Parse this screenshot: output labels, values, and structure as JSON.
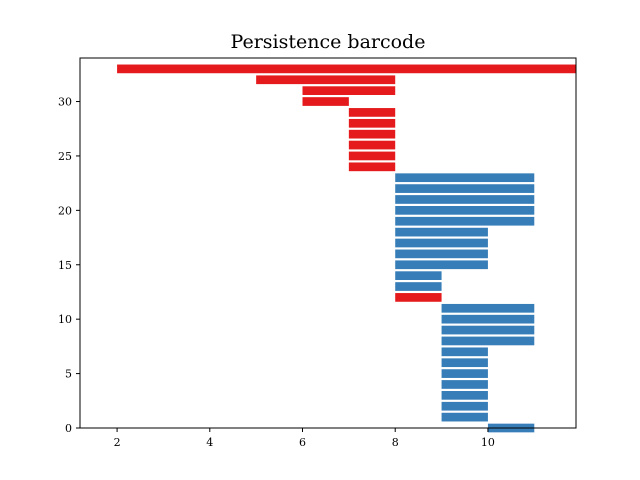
{
  "chart_data": {
    "type": "bar",
    "orientation": "horizontal",
    "title": "Persistence barcode",
    "xlabel": "",
    "ylabel": "",
    "xlim": [
      1.2,
      11.9
    ],
    "ylim": [
      0,
      34
    ],
    "xticks": [
      2,
      4,
      6,
      8,
      10
    ],
    "yticks": [
      0,
      5,
      10,
      15,
      20,
      25,
      30
    ],
    "grid": false,
    "legend": "none",
    "colors": {
      "dim0": "#e41a1c",
      "dim1": "#377eb8"
    },
    "bars": [
      {
        "y": 0,
        "start": 10,
        "end": 11,
        "dim": 1
      },
      {
        "y": 1,
        "start": 9,
        "end": 10,
        "dim": 1
      },
      {
        "y": 2,
        "start": 9,
        "end": 10,
        "dim": 1
      },
      {
        "y": 3,
        "start": 9,
        "end": 10,
        "dim": 1
      },
      {
        "y": 4,
        "start": 9,
        "end": 10,
        "dim": 1
      },
      {
        "y": 5,
        "start": 9,
        "end": 10,
        "dim": 1
      },
      {
        "y": 6,
        "start": 9,
        "end": 10,
        "dim": 1
      },
      {
        "y": 7,
        "start": 9,
        "end": 10,
        "dim": 1
      },
      {
        "y": 8,
        "start": 9,
        "end": 11,
        "dim": 1
      },
      {
        "y": 9,
        "start": 9,
        "end": 11,
        "dim": 1
      },
      {
        "y": 10,
        "start": 9,
        "end": 11,
        "dim": 1
      },
      {
        "y": 11,
        "start": 9,
        "end": 11,
        "dim": 1
      },
      {
        "y": 12,
        "start": 8,
        "end": 9,
        "dim": 0
      },
      {
        "y": 13,
        "start": 8,
        "end": 9,
        "dim": 1
      },
      {
        "y": 14,
        "start": 8,
        "end": 9,
        "dim": 1
      },
      {
        "y": 15,
        "start": 8,
        "end": 10,
        "dim": 1
      },
      {
        "y": 16,
        "start": 8,
        "end": 10,
        "dim": 1
      },
      {
        "y": 17,
        "start": 8,
        "end": 10,
        "dim": 1
      },
      {
        "y": 18,
        "start": 8,
        "end": 10,
        "dim": 1
      },
      {
        "y": 19,
        "start": 8,
        "end": 11,
        "dim": 1
      },
      {
        "y": 20,
        "start": 8,
        "end": 11,
        "dim": 1
      },
      {
        "y": 21,
        "start": 8,
        "end": 11,
        "dim": 1
      },
      {
        "y": 22,
        "start": 8,
        "end": 11,
        "dim": 1
      },
      {
        "y": 23,
        "start": 8,
        "end": 11,
        "dim": 1
      },
      {
        "y": 24,
        "start": 7,
        "end": 8,
        "dim": 0
      },
      {
        "y": 25,
        "start": 7,
        "end": 8,
        "dim": 0
      },
      {
        "y": 26,
        "start": 7,
        "end": 8,
        "dim": 0
      },
      {
        "y": 27,
        "start": 7,
        "end": 8,
        "dim": 0
      },
      {
        "y": 28,
        "start": 7,
        "end": 8,
        "dim": 0
      },
      {
        "y": 29,
        "start": 7,
        "end": 8,
        "dim": 0
      },
      {
        "y": 30,
        "start": 6,
        "end": 7,
        "dim": 0
      },
      {
        "y": 31,
        "start": 6,
        "end": 8,
        "dim": 0
      },
      {
        "y": 32,
        "start": 5,
        "end": 8,
        "dim": 0
      },
      {
        "y": 33,
        "start": 2,
        "end": 11.9,
        "dim": 0
      }
    ]
  }
}
